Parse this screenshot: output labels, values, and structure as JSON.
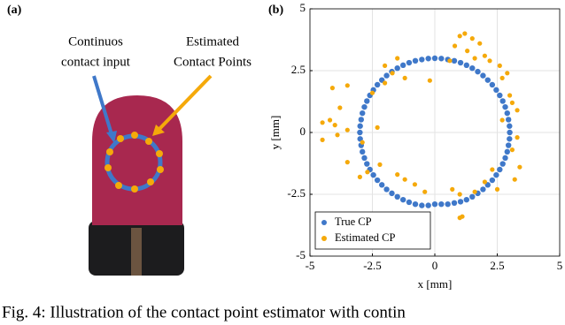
{
  "figure_a": {
    "label": "(a)",
    "annotation_left": [
      "Continuos",
      "contact input"
    ],
    "annotation_right": [
      "Estimated",
      "Contact Points"
    ]
  },
  "chart_data": {
    "type": "scatter",
    "label": "(b)",
    "x_label": "x [mm]",
    "y_label": "y [mm]",
    "xlim": [
      -5,
      5
    ],
    "ylim": [
      -5,
      5
    ],
    "xticks": [
      -5,
      -2.5,
      0,
      2.5,
      5
    ],
    "yticks": [
      -5,
      -2.5,
      0,
      2.5,
      5
    ],
    "grid": true,
    "legend": "lower left",
    "series": [
      {
        "name": "True CP",
        "color": "#3f78c9",
        "x": [
          3.0,
          2.99,
          2.95,
          2.9,
          2.82,
          2.72,
          2.6,
          2.46,
          2.3,
          2.12,
          1.93,
          1.72,
          1.5,
          1.27,
          1.03,
          0.78,
          0.52,
          0.26,
          0,
          -0.26,
          -0.52,
          -0.78,
          -1.03,
          -1.27,
          -1.5,
          -1.72,
          -1.93,
          -2.12,
          -2.3,
          -2.46,
          -2.6,
          -2.72,
          -2.82,
          -2.9,
          -2.95,
          -2.99,
          -3.0,
          -2.99,
          -2.95,
          -2.9,
          -2.82,
          -2.72,
          -2.6,
          -2.46,
          -2.3,
          -2.12,
          -1.93,
          -1.72,
          -1.5,
          -1.27,
          -1.03,
          -0.78,
          -0.52,
          -0.26,
          0,
          0.26,
          0.52,
          0.78,
          1.03,
          1.27,
          1.5,
          1.72,
          1.93,
          2.12,
          2.3,
          2.46,
          2.6,
          2.72,
          2.82,
          2.9,
          2.95,
          2.99
        ],
        "values": [
          0,
          0.26,
          0.52,
          0.78,
          1.03,
          1.27,
          1.5,
          1.72,
          1.93,
          2.12,
          2.3,
          2.46,
          2.6,
          2.72,
          2.82,
          2.9,
          2.95,
          2.99,
          3.0,
          2.99,
          2.95,
          2.9,
          2.82,
          2.72,
          2.6,
          2.46,
          2.3,
          2.12,
          1.93,
          1.72,
          1.5,
          1.27,
          1.03,
          0.78,
          0.52,
          0.26,
          0,
          -0.26,
          -0.52,
          -0.78,
          -1.03,
          -1.27,
          -1.5,
          -1.72,
          -1.93,
          -2.12,
          -2.3,
          -2.46,
          -2.6,
          -2.72,
          -2.82,
          -2.9,
          -2.95,
          -2.95,
          -2.9,
          -2.9,
          -2.9,
          -2.85,
          -2.8,
          -2.72,
          -2.6,
          -2.46,
          -2.3,
          -2.12,
          -1.93,
          -1.72,
          -1.5,
          -1.27,
          -1.03,
          -0.78,
          -0.52,
          -0.26
        ]
      },
      {
        "name": "Estimated CP",
        "color": "#f5a90a",
        "x": [
          1.0,
          1.2,
          1.5,
          1.8,
          0.8,
          1.3,
          2.0,
          2.2,
          2.6,
          2.9,
          2.7,
          3.0,
          3.1,
          3.3,
          2.7,
          3.3,
          3.1,
          3.4,
          3.2,
          2.3,
          2.0,
          2.5,
          1.6,
          1.0,
          0.7,
          1.1,
          1.0,
          -0.4,
          -0.8,
          -1.2,
          -1.5,
          -2.2,
          -2.7,
          -3.0,
          -3.5,
          -4.5,
          -4.2,
          -4.0,
          -3.9,
          -4.5,
          -3.5,
          -2.3,
          -2.9,
          -3.8,
          -4.1,
          -3.5,
          -2.5,
          -2.0,
          -1.7,
          -1.2,
          -2.0,
          -1.5,
          -0.2,
          0.6,
          1.6
        ],
        "values": [
          3.9,
          4.0,
          3.8,
          3.6,
          3.5,
          3.3,
          3.1,
          2.9,
          2.7,
          2.4,
          2.2,
          1.5,
          1.2,
          0.9,
          0.5,
          -0.2,
          -0.7,
          -1.4,
          -1.9,
          -1.5,
          -2.0,
          -2.3,
          -2.4,
          -2.5,
          -2.3,
          -3.4,
          -3.45,
          -2.4,
          -2.1,
          -1.9,
          -1.7,
          -1.3,
          -1.6,
          -1.8,
          -1.2,
          -0.3,
          0.5,
          0.3,
          -0.1,
          0.4,
          0.1,
          0.2,
          -0.4,
          1.0,
          1.8,
          1.9,
          1.6,
          2.0,
          2.4,
          2.2,
          2.7,
          3.0,
          2.1,
          2.9,
          3.0
        ]
      }
    ]
  },
  "caption": "Fig. 4: Illustration of the contact point estimator with contin"
}
